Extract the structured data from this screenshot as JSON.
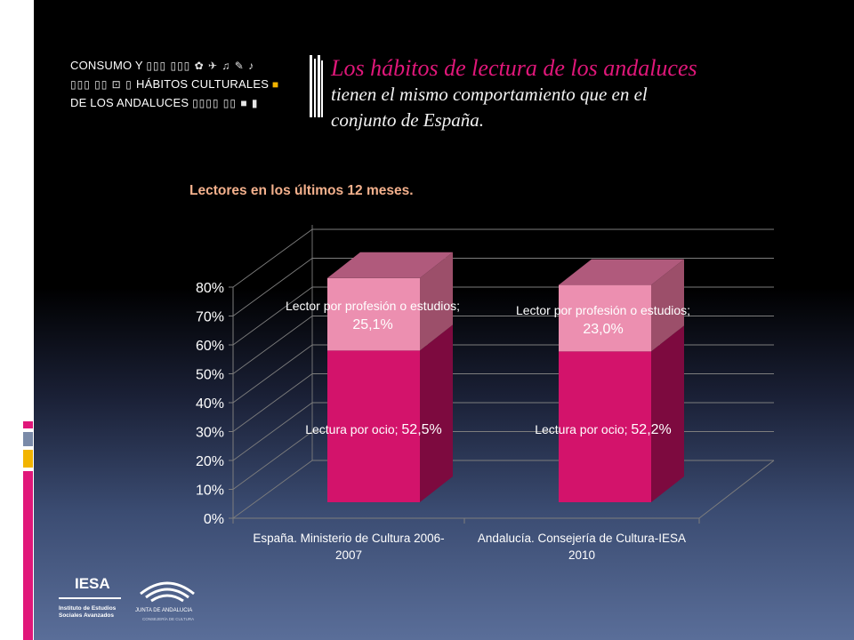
{
  "heading": {
    "line1": "Los hábitos de lectura de los andaluces",
    "line2": "tienen el mismo comportamiento que en el",
    "line3": "conjunto de España."
  },
  "logo": {
    "line1": "CONSUMO Y",
    "line2": "HÁBITOS CULTURALES",
    "line3": "DE LOS ANDALUCES"
  },
  "colors": {
    "ocio": "#d3136b",
    "profesion": "#ec8fb0",
    "heading_accent": "#e0177a",
    "chart_title": "#f3b08c"
  },
  "footer": {
    "iesa": "IESA",
    "iesa_sub1": "Instituto de Estudios",
    "iesa_sub2": "Sociales Avanzados",
    "junta": "JUNTA DE ANDALUCIA",
    "junta_sub": "CONSEJERÍA DE CULTURA"
  },
  "chart_data": {
    "type": "bar",
    "stacked": true,
    "style": "3d",
    "title": "Lectores en los últimos 12 meses.",
    "categories": [
      [
        "España. Ministerio de Cultura 2006-",
        "2007"
      ],
      [
        "Andalucía. Consejería de Cultura-IESA",
        "2010"
      ]
    ],
    "series": [
      {
        "name": "Lectura por ocio",
        "values": [
          52.5,
          52.2
        ],
        "labels": [
          "52,5%",
          "52,2%"
        ]
      },
      {
        "name": "Lector por profesión o estudios",
        "values": [
          25.1,
          23.0
        ],
        "labels": [
          "25,1%",
          "23,0%"
        ]
      }
    ],
    "ylim": [
      0,
      80
    ],
    "yticks": [
      "0%",
      "10%",
      "20%",
      "30%",
      "40%",
      "50%",
      "60%",
      "70%",
      "80%"
    ],
    "grid": true,
    "legend": "none"
  }
}
